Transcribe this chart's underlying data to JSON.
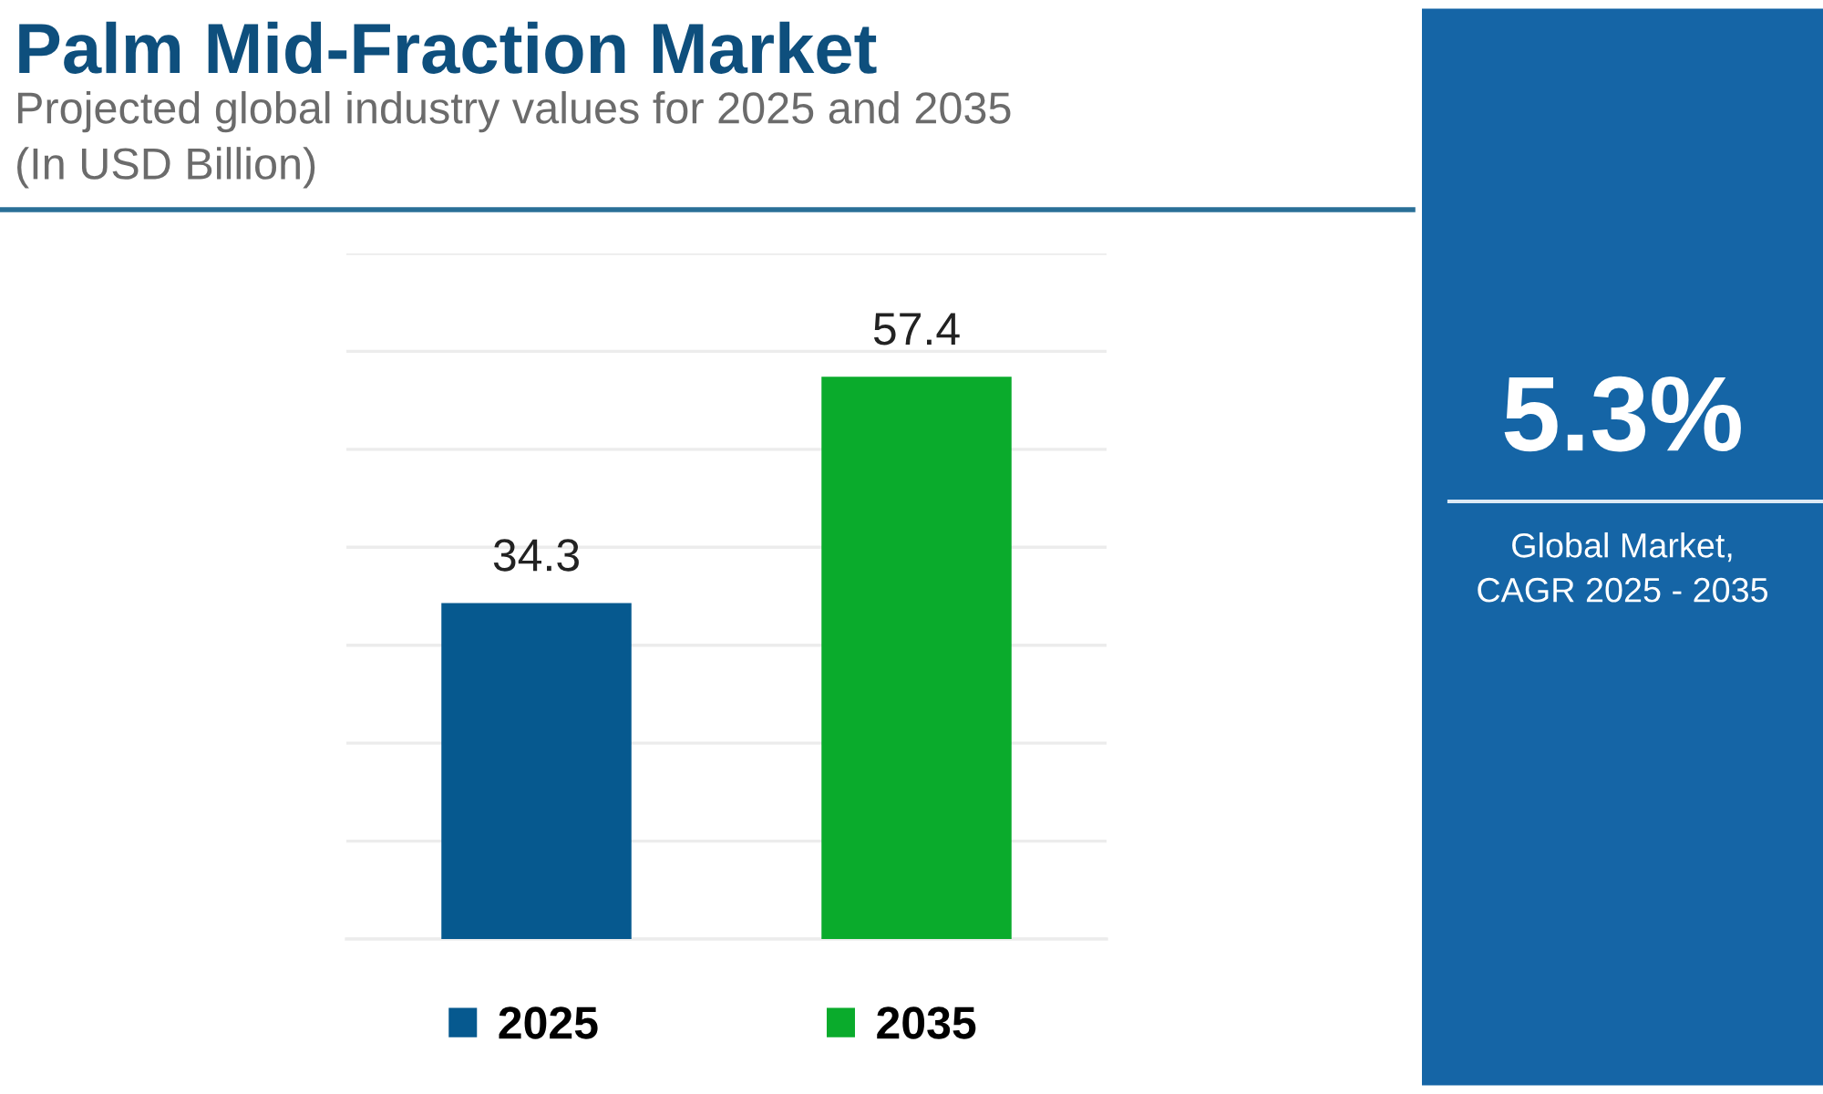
{
  "chart_data": {
    "type": "bar",
    "title": "Palm Mid-Fraction Market",
    "subtitle": "Projected global industry values for 2025 and 2035\n(In USD Billion)",
    "categories": [
      null,
      null
    ],
    "stacked": true,
    "series": [
      {
        "name": "2025",
        "color": "#06598f",
        "values": [
          34.3,
          null
        ]
      },
      {
        "name": "2035",
        "color": "#0aab2c",
        "values": [
          null,
          57.4
        ]
      }
    ],
    "ylim": [
      0,
      70
    ],
    "yticks": [
      {
        "value": 0,
        "label": null
      },
      {
        "value": 10,
        "label": null
      },
      {
        "value": 20,
        "label": null
      },
      {
        "value": 30,
        "label": null
      },
      {
        "value": 40,
        "label": null
      },
      {
        "value": 50,
        "label": null
      },
      {
        "value": 60,
        "label": null
      },
      {
        "value": 70,
        "label": null
      }
    ],
    "grid": "y",
    "legend": "bottom",
    "data_labels": true,
    "annotations": [
      "5.3%",
      "Global Market,\nCAGR 2025 - 2035"
    ]
  }
}
